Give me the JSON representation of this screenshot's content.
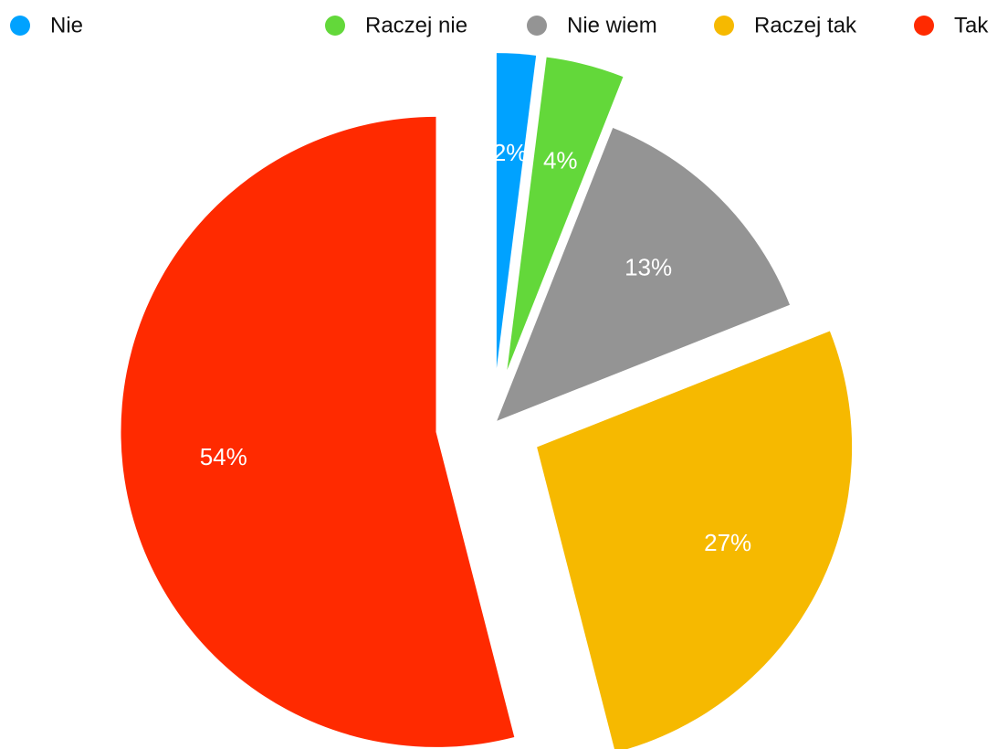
{
  "chart_data": {
    "type": "pie",
    "categories": [
      "Nie",
      "Raczej nie",
      "Nie wiem",
      "Raczej tak",
      "Tak"
    ],
    "values": [
      2,
      4,
      13,
      27,
      54
    ],
    "value_labels": [
      "2%",
      "4%",
      "13%",
      "27%",
      "54%"
    ],
    "colors": [
      "#00a2ff",
      "#63d83a",
      "#949494",
      "#f6b900",
      "#ff2a00"
    ],
    "legend": "top"
  }
}
